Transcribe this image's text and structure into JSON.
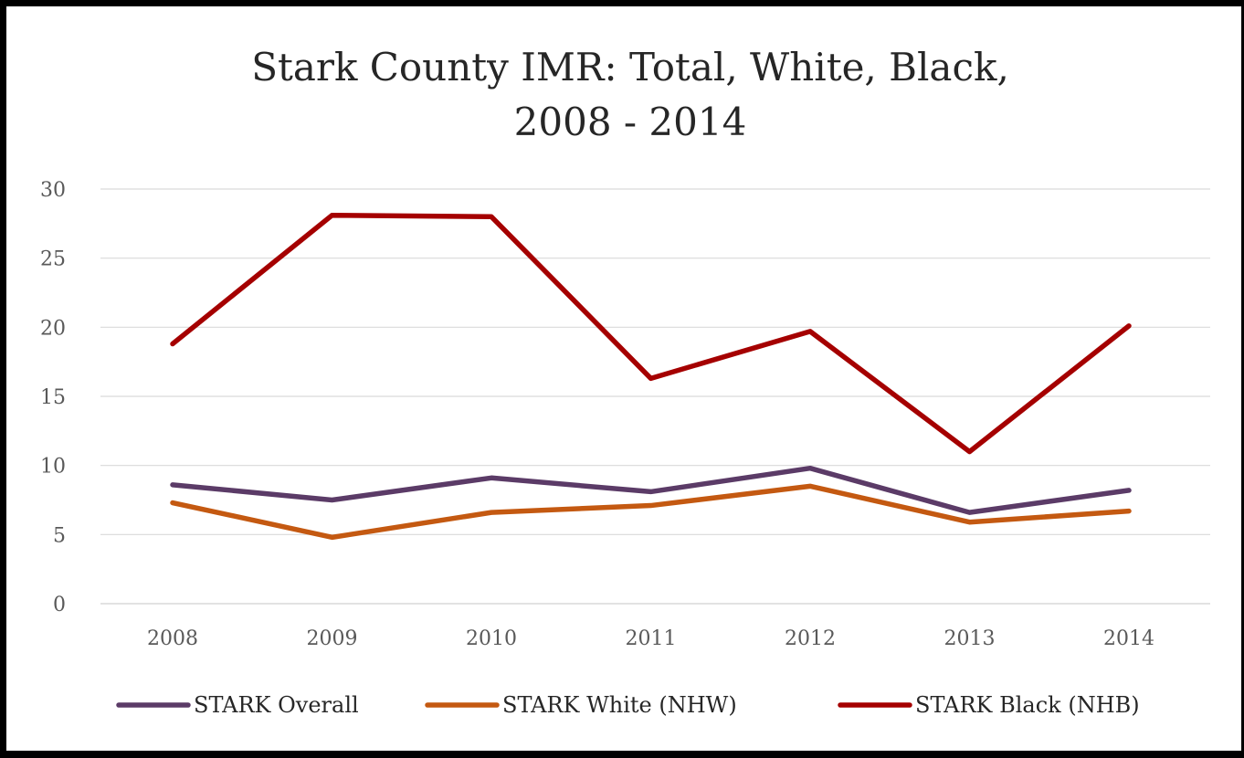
{
  "chart_data": {
    "type": "line",
    "title_lines": [
      "Stark County IMR: Total, White, Black,",
      "2008 - 2014"
    ],
    "xlabel": "",
    "ylabel": "",
    "categories": [
      "2008",
      "2009",
      "2010",
      "2011",
      "2012",
      "2013",
      "2014"
    ],
    "y_ticks": [
      "0",
      "5",
      "10",
      "15",
      "20",
      "25",
      "30"
    ],
    "ylim": [
      0,
      30
    ],
    "grid": "horizontal",
    "legend_position": "bottom",
    "series": [
      {
        "name": "STARK Overall",
        "color": "#5b3b67",
        "values": [
          8.6,
          7.5,
          9.1,
          8.1,
          9.8,
          6.6,
          8.2
        ]
      },
      {
        "name": "STARK White (NHW)",
        "color": "#c45911",
        "values": [
          7.3,
          4.8,
          6.6,
          7.1,
          8.5,
          5.9,
          6.7
        ]
      },
      {
        "name": "STARK Black (NHB)",
        "color": "#a50000",
        "values": [
          18.8,
          28.1,
          28.0,
          16.3,
          19.7,
          11.0,
          20.1
        ]
      }
    ]
  }
}
